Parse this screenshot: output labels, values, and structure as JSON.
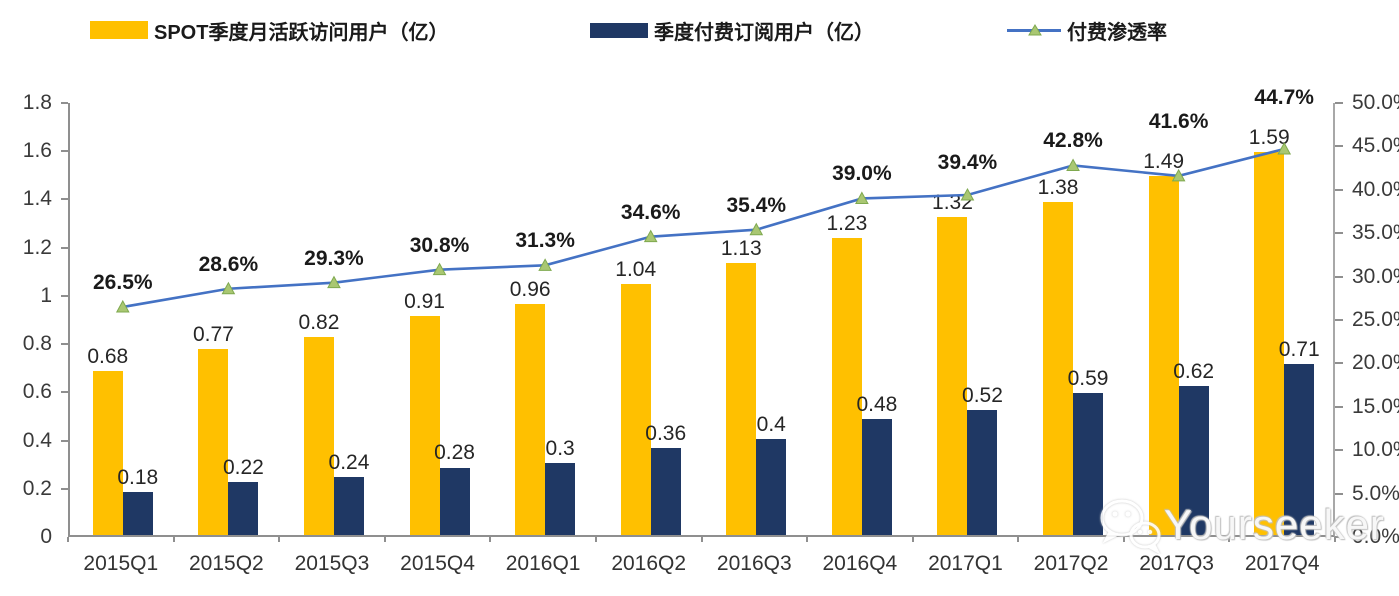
{
  "chart_data": {
    "type": "combo-bar-line",
    "title": "",
    "categories": [
      "2015Q1",
      "2015Q2",
      "2015Q3",
      "2015Q4",
      "2016Q1",
      "2016Q2",
      "2016Q3",
      "2016Q4",
      "2017Q1",
      "2017Q2",
      "2017Q3",
      "2017Q4"
    ],
    "series": [
      {
        "name": "SPOT季度月活跃访问用户（亿）",
        "type": "bar",
        "axis": "left",
        "color": "#FFC000",
        "values": [
          0.68,
          0.77,
          0.82,
          0.91,
          0.96,
          1.04,
          1.13,
          1.23,
          1.32,
          1.38,
          1.49,
          1.59
        ],
        "labels": [
          "0.68",
          "0.77",
          "0.82",
          "0.91",
          "0.96",
          "1.04",
          "1.13",
          "1.23",
          "1.32",
          "1.38",
          "1.49",
          "1.59"
        ]
      },
      {
        "name": "季度付费订阅用户（亿）",
        "type": "bar",
        "axis": "left",
        "color": "#1F3864",
        "values": [
          0.18,
          0.22,
          0.24,
          0.28,
          0.3,
          0.36,
          0.4,
          0.48,
          0.52,
          0.59,
          0.62,
          0.71
        ],
        "labels": [
          "0.18",
          "0.22",
          "0.24",
          "0.28",
          "0.3",
          "0.36",
          "0.4",
          "0.48",
          "0.52",
          "0.59",
          "0.62",
          "0.71"
        ]
      },
      {
        "name": "付费渗透率",
        "type": "line",
        "axis": "right",
        "color": "#4472C4",
        "marker": "triangle",
        "marker_color": "#A9C772",
        "marker_edge_color": "#7FA94F",
        "values": [
          26.5,
          28.6,
          29.3,
          30.8,
          31.3,
          34.6,
          35.4,
          39.0,
          39.4,
          42.8,
          41.6,
          44.7
        ],
        "labels": [
          "26.5%",
          "28.6%",
          "29.3%",
          "30.8%",
          "31.3%",
          "34.6%",
          "35.4%",
          "39.0%",
          "39.4%",
          "42.8%",
          "41.6%",
          "44.7%"
        ]
      }
    ],
    "left_axis": {
      "min": 0,
      "max": 1.8,
      "step": 0.2,
      "tick_labels": [
        "0",
        "0.2",
        "0.4",
        "0.6",
        "0.8",
        "1",
        "1.2",
        "1.4",
        "1.6",
        "1.8"
      ]
    },
    "right_axis": {
      "min": 0,
      "max": 50,
      "step": 5,
      "tick_labels": [
        "0.0%",
        "5.0%",
        "10.0%",
        "15.0%",
        "20.0%",
        "25.0%",
        "30.0%",
        "35.0%",
        "40.0%",
        "45.0%",
        "50.0%"
      ]
    },
    "legend_position": "top",
    "grid": false,
    "plot_background": "#ffffff"
  },
  "watermark": {
    "text": "Yourseeker",
    "icon": "wechat-icon"
  }
}
